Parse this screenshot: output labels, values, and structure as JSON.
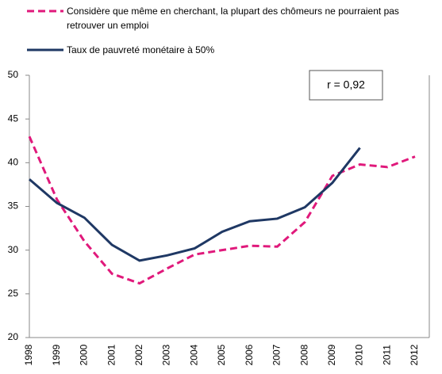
{
  "chart_data": {
    "type": "line",
    "categories": [
      "1998",
      "1999",
      "2000",
      "2001",
      "2002",
      "2003",
      "2004",
      "2005",
      "2006",
      "2007",
      "2008",
      "2009",
      "2010",
      "2011",
      "2012"
    ],
    "series": [
      {
        "name": "Considère que même en cherchant, la plupart des chômeurs ne pourraient pas retrouver un emploi",
        "color": "#e0197b",
        "dashed": true,
        "values": [
          43.0,
          35.8,
          31.0,
          27.3,
          26.2,
          27.9,
          29.5,
          30.0,
          30.5,
          30.4,
          33.2,
          38.5,
          39.8,
          39.5,
          40.7
        ]
      },
      {
        "name": "Taux de pauvreté monétaire à 50%",
        "color": "#1f3864",
        "dashed": false,
        "values": [
          38.1,
          35.4,
          33.7,
          30.6,
          28.8,
          29.4,
          30.2,
          32.1,
          33.3,
          33.6,
          34.9,
          37.7,
          41.7,
          null,
          null
        ]
      }
    ],
    "annotation": "r = 0,92",
    "ylim": [
      20,
      50
    ],
    "yticks": [
      20,
      25,
      30,
      35,
      40,
      45,
      50
    ]
  }
}
